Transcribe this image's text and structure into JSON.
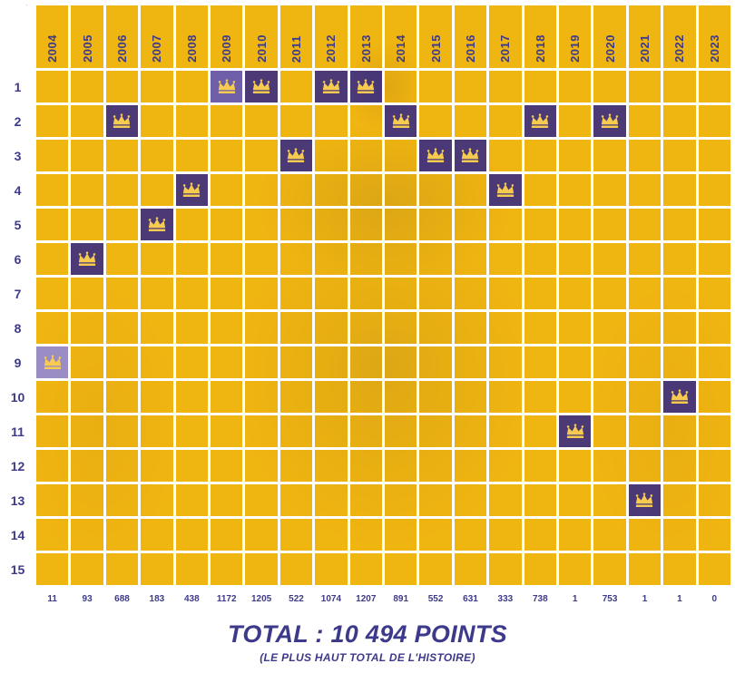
{
  "grid": {
    "years": [
      "2004",
      "2005",
      "2006",
      "2007",
      "2008",
      "2009",
      "2010",
      "2011",
      "2012",
      "2013",
      "2014",
      "2015",
      "2016",
      "2017",
      "2018",
      "2019",
      "2020",
      "2021",
      "2022",
      "2023"
    ],
    "ranks": [
      "1",
      "2",
      "3",
      "4",
      "5",
      "6",
      "7",
      "8",
      "9",
      "10",
      "11",
      "12",
      "13",
      "14",
      "15"
    ],
    "crown_rank_by_year": {
      "2004": 9,
      "2005": 6,
      "2006": 2,
      "2007": 5,
      "2008": 4,
      "2009": 1,
      "2010": 1,
      "2011": 3,
      "2012": 1,
      "2013": 1,
      "2014": 2,
      "2015": 3,
      "2016": 3,
      "2017": 4,
      "2018": 2,
      "2019": 11,
      "2020": 2,
      "2021": 13,
      "2022": 10,
      "2023": null
    },
    "crown_cell_overrides": {
      "2004": "#9A8CC4",
      "2009": "#6F5FA8"
    },
    "points_by_year": [
      "11",
      "93",
      "688",
      "183",
      "438",
      "1172",
      "1205",
      "522",
      "1074",
      "1207",
      "891",
      "552",
      "631",
      "333",
      "738",
      "1",
      "753",
      "1",
      "1",
      "0"
    ]
  },
  "footer": {
    "total": "TOTAL : 10 494 POINTS",
    "subtitle": "(LE PLUS HAUT TOTAL DE L'HISTOIRE)"
  },
  "colors": {
    "cell_yellow": "#EFB411",
    "crown_cell_purple": "#40307F",
    "text_purple": "#3E3A8B",
    "crown_gold": "#F6CB4F",
    "logo_red": "#D12E26"
  },
  "chart_data": {
    "type": "heatmap",
    "title": "TOTAL : 10 494 POINTS",
    "subtitle": "(LE PLUS HAUT TOTAL DE L'HISTOIRE)",
    "x_categories": [
      "2004",
      "2005",
      "2006",
      "2007",
      "2008",
      "2009",
      "2010",
      "2011",
      "2012",
      "2013",
      "2014",
      "2015",
      "2016",
      "2017",
      "2018",
      "2019",
      "2020",
      "2021",
      "2022",
      "2023"
    ],
    "y_categories": [
      "1",
      "2",
      "3",
      "4",
      "5",
      "6",
      "7",
      "8",
      "9",
      "10",
      "11",
      "12",
      "13",
      "14",
      "15"
    ],
    "y_axis_direction": "rank 1 at top, 15 at bottom",
    "legend_position": "none",
    "grid": true,
    "series": [
      {
        "name": "crown rank by year (marked cell)",
        "values": [
          9,
          6,
          2,
          5,
          4,
          1,
          1,
          3,
          1,
          1,
          2,
          3,
          3,
          4,
          2,
          11,
          2,
          13,
          10,
          null
        ]
      },
      {
        "name": "points by year (bottom row)",
        "values": [
          11,
          93,
          688,
          183,
          438,
          1172,
          1205,
          522,
          1074,
          1207,
          891,
          552,
          631,
          333,
          738,
          1,
          753,
          1,
          1,
          0
        ]
      }
    ],
    "total_points": 10494
  }
}
